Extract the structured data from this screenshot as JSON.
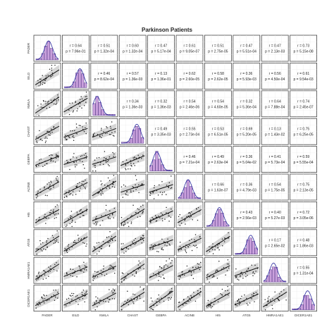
{
  "title": "Parkinson Patients",
  "chart_data": {
    "type": "scatter_matrix",
    "title": "Parkinson Patients",
    "variables": [
      "PADER",
      "EILD",
      "NWLA",
      "CHAST",
      "GEBPA",
      "ACINB",
      "HI5",
      "ATG5",
      "HMRA1AE1",
      "DICER1AE1"
    ],
    "correlations": [
      {
        "row": 1,
        "col": 2,
        "r": "0.64",
        "p": "7.96e-01"
      },
      {
        "row": 1,
        "col": 3,
        "r": "0.51",
        "p": "1.32e-04"
      },
      {
        "row": 1,
        "col": 4,
        "r": "0.60",
        "p": "1.32e-04"
      },
      {
        "row": 1,
        "col": 5,
        "r": "0.47",
        "p": "5.17e-04"
      },
      {
        "row": 1,
        "col": 6,
        "r": "0.61",
        "p": "9.05e-07"
      },
      {
        "row": 1,
        "col": 7,
        "r": "0.51",
        "p": "2.75e-05"
      },
      {
        "row": 1,
        "col": 8,
        "r": "0.47",
        "p": "5.51e-04"
      },
      {
        "row": 1,
        "col": 9,
        "r": "0.47",
        "p": "2.13e-03"
      },
      {
        "row": 1,
        "col": 10,
        "r": "0.73",
        "p": "5.15e-08"
      },
      {
        "row": 2,
        "col": 3,
        "r": "0.46",
        "p": "8.62e-04"
      },
      {
        "row": 2,
        "col": 4,
        "r": "0.57",
        "p": "1.36e-03"
      },
      {
        "row": 2,
        "col": 5,
        "r": "0.13",
        "p": "1.36e-01"
      },
      {
        "row": 2,
        "col": 6,
        "r": "0.62",
        "p": "2.60e-05"
      },
      {
        "row": 2,
        "col": 7,
        "r": "0.58",
        "p": "2.62e-05"
      },
      {
        "row": 2,
        "col": 8,
        "r": "0.36",
        "p": "5.93e-03"
      },
      {
        "row": 2,
        "col": 9,
        "r": "0.56",
        "p": "4.50e-04"
      },
      {
        "row": 2,
        "col": 10,
        "r": "0.61",
        "p": "9.54e-03"
      },
      {
        "row": 3,
        "col": 4,
        "r": "0.34",
        "p": "1.36e-03"
      },
      {
        "row": 3,
        "col": 5,
        "r": "0.32",
        "p": "1.36e-03"
      },
      {
        "row": 3,
        "col": 6,
        "r": "0.54",
        "p": "2.46e-06"
      },
      {
        "row": 3,
        "col": 7,
        "r": "0.54",
        "p": "4.60e-05"
      },
      {
        "row": 3,
        "col": 8,
        "r": "0.32",
        "p": "5.36e-04"
      },
      {
        "row": 3,
        "col": 9,
        "r": "0.64",
        "p": "7.88e-04"
      },
      {
        "row": 3,
        "col": 10,
        "r": "0.74",
        "p": "2.45e-07"
      },
      {
        "row": 4,
        "col": 5,
        "r": "0.49",
        "p": "3.35e-03"
      },
      {
        "row": 4,
        "col": 6,
        "r": "0.55",
        "p": "2.73e-04"
      },
      {
        "row": 4,
        "col": 7,
        "r": "0.53",
        "p": "6.51e-05"
      },
      {
        "row": 4,
        "col": 8,
        "r": "0.69",
        "p": "5.20e-05"
      },
      {
        "row": 4,
        "col": 9,
        "r": "0.13",
        "p": "1.43e-02"
      },
      {
        "row": 4,
        "col": 10,
        "r": "0.75",
        "p": "6.25e-05"
      },
      {
        "row": 5,
        "col": 6,
        "r": "0.46",
        "p": "7.21e-04"
      },
      {
        "row": 5,
        "col": 7,
        "r": "0.49",
        "p": "2.63e-04"
      },
      {
        "row": 5,
        "col": 8,
        "r": "0.36",
        "p": "5.04e-02"
      },
      {
        "row": 5,
        "col": 9,
        "r": "0.41",
        "p": "5.73e-04"
      },
      {
        "row": 5,
        "col": 10,
        "r": "0.59",
        "p": "5.55e-04"
      },
      {
        "row": 6,
        "col": 7,
        "r": "0.66",
        "p": "1.63e-07"
      },
      {
        "row": 6,
        "col": 8,
        "r": "0.36",
        "p": "4.79e-03"
      },
      {
        "row": 6,
        "col": 9,
        "r": "0.54",
        "p": "1.75e-05"
      },
      {
        "row": 6,
        "col": 10,
        "r": "0.75",
        "p": "2.13e-05"
      },
      {
        "row": 7,
        "col": 8,
        "r": "0.43",
        "p": "2.56e-03"
      },
      {
        "row": 7,
        "col": 9,
        "r": "0.40",
        "p": "5.27e-03"
      },
      {
        "row": 7,
        "col": 10,
        "r": "0.72",
        "p": "3.05e-06"
      },
      {
        "row": 8,
        "col": 9,
        "r": "0.17",
        "p": "2.65e-02"
      },
      {
        "row": 8,
        "col": 10,
        "r": "0.48",
        "p": "1.86e-03"
      },
      {
        "row": 9,
        "col": 10,
        "r": "0.55",
        "p": "1.31e-04"
      }
    ],
    "colors": {
      "histogram_fill": "#c9a0dc",
      "histogram_stroke": "#5a3d8a",
      "density_line": "#2a2aa0",
      "points": "#222222",
      "fit_line": "#111111",
      "confidence_band": "#c8c8c8",
      "panel_border": "#444444"
    },
    "grid": true
  }
}
